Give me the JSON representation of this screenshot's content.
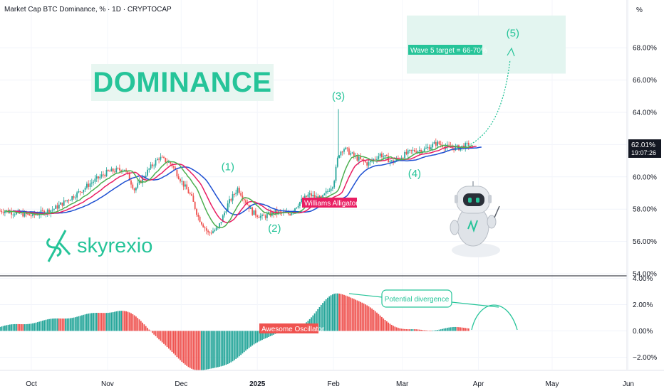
{
  "header": {
    "title": "Market Cap BTC Dominance, % · 1D · CRYPTOCAP",
    "unit_label": "%"
  },
  "overlay": {
    "dominance_label": "DOMINANCE",
    "brand_name": "skyrexio"
  },
  "colors": {
    "bull": "#26a69a",
    "bear": "#ef5350",
    "teal": "#26c499",
    "lips": "#4caf50",
    "teeth": "#e91e63",
    "jaw": "#1e50d2",
    "target_zone": "#e3f5f0",
    "price_tag": "#131722"
  },
  "chart_data": [
    {
      "type": "candlestick",
      "title": "Market Cap BTC Dominance, % · 1D · CRYPTOCAP",
      "y_unit": "%",
      "x_ticks": [
        "Oct",
        "Nov",
        "Dec",
        "2025",
        "Feb",
        "Mar",
        "Apr",
        "May",
        "Jun"
      ],
      "y_ticks": [
        "54.00%",
        "56.00%",
        "58.00%",
        "60.00%",
        "62.00%",
        "64.00%",
        "66.00%",
        "68.00%"
      ],
      "ylim": [
        54,
        70
      ],
      "last_price": "62.01%",
      "countdown": "19:07:26",
      "close_series": {
        "x": [
          "2024-09-20",
          "2024-10-01",
          "2024-10-10",
          "2024-10-20",
          "2024-10-25",
          "2024-11-01",
          "2024-11-08",
          "2024-11-12",
          "2024-11-18",
          "2024-11-22",
          "2024-11-27",
          "2024-12-02",
          "2024-12-05",
          "2024-12-08",
          "2024-12-12",
          "2024-12-16",
          "2024-12-20",
          "2024-12-24",
          "2024-12-30",
          "2025-01-03",
          "2025-01-08",
          "2025-01-14",
          "2025-01-18",
          "2025-01-22",
          "2025-01-27",
          "2025-02-01",
          "2025-02-03",
          "2025-02-05",
          "2025-02-10",
          "2025-02-15",
          "2025-02-20",
          "2025-02-25",
          "2025-03-01",
          "2025-03-05",
          "2025-03-10",
          "2025-03-15",
          "2025-03-20",
          "2025-03-24",
          "2025-03-28"
        ],
        "y": [
          57.9,
          57.6,
          58.0,
          59.0,
          59.6,
          60.3,
          60.5,
          59.2,
          60.5,
          61.2,
          60.8,
          59.5,
          58.8,
          57.5,
          56.5,
          56.8,
          58.3,
          59.3,
          57.8,
          57.5,
          57.8,
          57.7,
          58.4,
          58.9,
          58.6,
          59.6,
          61.4,
          61.8,
          61.2,
          60.8,
          61.4,
          60.9,
          61.3,
          61.6,
          61.7,
          62.1,
          61.8,
          61.8,
          62.0
        ]
      },
      "indicators": [
        "Williams Alligator"
      ],
      "annotations": [
        {
          "text": "(1)",
          "x": "2024-12-20",
          "y": 60.4
        },
        {
          "text": "(2)",
          "x": "2025-01-08",
          "y": 56.6
        },
        {
          "text": "(3)",
          "x": "2025-02-03",
          "y": 64.8
        },
        {
          "text": "(4)",
          "x": "2025-03-06",
          "y": 60.0
        },
        {
          "text": "(5)",
          "x": "2025-04-15",
          "y": 68.7
        },
        {
          "text": "Wave 5 target = 66-70%"
        },
        {
          "text": "Williams Alligator"
        }
      ],
      "target_zone": {
        "ylow": 66.4,
        "yhigh": 70
      }
    },
    {
      "type": "bar",
      "title": "Awesome Oscillator",
      "y_unit": "%",
      "y_ticks": [
        "4.00%",
        "2.00%",
        "0.00%",
        "−2.00%"
      ],
      "ylim": [
        -3.2,
        4.0
      ],
      "values_summary": [
        {
          "x": "2024-11-05",
          "y": 1.55
        },
        {
          "x": "2024-12-10",
          "y": -3.0
        },
        {
          "x": "2025-01-15",
          "y": 0.1
        },
        {
          "x": "2025-02-03",
          "y": 2.8
        },
        {
          "x": "2025-03-05",
          "y": 0.05
        },
        {
          "x": "2025-03-28",
          "y": 0.25
        }
      ],
      "annotations": [
        {
          "text": "Potential divergence"
        },
        {
          "text": "Awesome Oscillator"
        }
      ]
    }
  ]
}
